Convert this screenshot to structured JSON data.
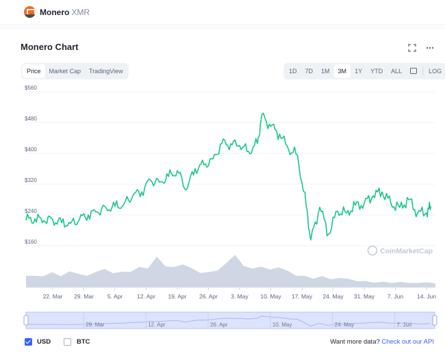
{
  "header": {
    "coin_name": "Monero",
    "coin_symbol": "XMR"
  },
  "chart_title": "Monero Chart",
  "view_tabs": [
    {
      "label": "Price",
      "active": true
    },
    {
      "label": "Market Cap",
      "active": false
    },
    {
      "label": "TradingView",
      "active": false
    }
  ],
  "range_tabs": [
    {
      "label": "1D",
      "active": false
    },
    {
      "label": "7D",
      "active": false
    },
    {
      "label": "1M",
      "active": false
    },
    {
      "label": "3M",
      "active": true
    },
    {
      "label": "1Y",
      "active": false
    },
    {
      "label": "YTD",
      "active": false
    },
    {
      "label": "ALL",
      "active": false
    }
  ],
  "log_label": "LOG",
  "icons": {
    "fullscreen": "fullscreen-icon",
    "more": "more-options-icon",
    "calendar": "calendar-icon"
  },
  "colors": {
    "line": "#16c784",
    "volume": "#cfd6e4",
    "navigator": "#dde3fc",
    "accent": "#3861fb"
  },
  "watermark": "CoinMarketCap",
  "chart_data": {
    "type": "line",
    "title": "",
    "ylabel": "",
    "ylim": [
      160,
      560
    ],
    "y_ticks": [
      "$560",
      "$480",
      "$400",
      "$320",
      "$240",
      "$160"
    ],
    "x_ticks": [
      "22. Mar",
      "29. Mar",
      "5. Apr",
      "12. Apr",
      "19. Apr",
      "26. Apr",
      "3. May",
      "10. May",
      "17. May",
      "24. May",
      "31. May",
      "7. Jun",
      "14. Jun"
    ],
    "nav_ticks": [
      "29. Mar",
      "12. Apr",
      "26. Apr",
      "10. May",
      "24. May",
      "7. Jun"
    ],
    "series": [
      {
        "x": [
          "2021-03-16",
          "2021-03-18",
          "2021-03-20",
          "2021-03-22",
          "2021-03-24",
          "2021-03-26",
          "2021-03-28",
          "2021-03-30",
          "2021-04-01",
          "2021-04-03",
          "2021-04-05",
          "2021-04-07",
          "2021-04-09",
          "2021-04-11",
          "2021-04-13",
          "2021-04-15",
          "2021-04-17",
          "2021-04-19",
          "2021-04-21",
          "2021-04-23",
          "2021-04-25",
          "2021-04-27",
          "2021-04-29",
          "2021-05-01",
          "2021-05-03",
          "2021-05-05",
          "2021-05-07",
          "2021-05-08",
          "2021-05-10",
          "2021-05-12",
          "2021-05-14",
          "2021-05-16",
          "2021-05-18",
          "2021-05-19",
          "2021-05-21",
          "2021-05-23",
          "2021-05-25",
          "2021-05-27",
          "2021-05-29",
          "2021-05-31",
          "2021-06-02",
          "2021-06-04",
          "2021-06-06",
          "2021-06-08",
          "2021-06-10",
          "2021-06-12",
          "2021-06-14",
          "2021-06-15"
        ],
        "values": [
          226,
          230,
          225,
          228,
          220,
          218,
          228,
          240,
          248,
          258,
          262,
          268,
          290,
          300,
          330,
          325,
          340,
          355,
          305,
          360,
          370,
          385,
          425,
          425,
          420,
          405,
          425,
          500,
          470,
          450,
          410,
          395,
          260,
          175,
          260,
          190,
          250,
          245,
          265,
          270,
          290,
          300,
          270,
          260,
          280,
          245,
          245,
          262
        ]
      }
    ],
    "volume": [
      18,
      14,
      16,
      20,
      15,
      22,
      18,
      16,
      20,
      28,
      18,
      24,
      20,
      30,
      26,
      45,
      30,
      28,
      34,
      26,
      22,
      20,
      25,
      34,
      48,
      30,
      26,
      30,
      24,
      30,
      22,
      18,
      14,
      12,
      14,
      10,
      12,
      10,
      8,
      6,
      7,
      5,
      6,
      5,
      5,
      4,
      5,
      4
    ]
  },
  "footer": {
    "usd_label": "USD",
    "btc_label": "BTC",
    "more_text": "Want more data?",
    "api_link": "Check out our API"
  }
}
